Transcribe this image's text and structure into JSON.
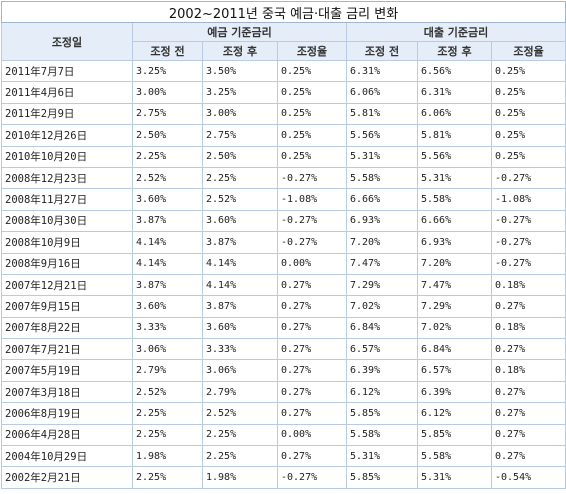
{
  "table": {
    "title": "2002~2011년 중국 예금·대출 금리 변화",
    "date_header": "조정일",
    "groups": [
      "예금 기준금리",
      "대출 기준금리"
    ],
    "sub_headers": [
      "조정 전",
      "조정 후",
      "조정율",
      "조정 전",
      "조정 후",
      "조정율"
    ],
    "rows": [
      [
        "2011年7月7日",
        "3.25%",
        "3.50%",
        "0.25%",
        "6.31%",
        "6.56%",
        "0.25%"
      ],
      [
        "2011年4月6日",
        "3.00%",
        "3.25%",
        "0.25%",
        "6.06%",
        "6.31%",
        "0.25%"
      ],
      [
        "2011年2月9日",
        "2.75%",
        "3.00%",
        "0.25%",
        "5.81%",
        "6.06%",
        "0.25%"
      ],
      [
        "2010年12月26日",
        "2.50%",
        "2.75%",
        "0.25%",
        "5.56%",
        "5.81%",
        "0.25%"
      ],
      [
        "2010年10月20日",
        "2.25%",
        "2.50%",
        "0.25%",
        "5.31%",
        "5.56%",
        "0.25%"
      ],
      [
        "2008年12月23日",
        "2.52%",
        "2.25%",
        "-0.27%",
        "5.58%",
        "5.31%",
        "-0.27%"
      ],
      [
        "2008年11月27日",
        "3.60%",
        "2.52%",
        "-1.08%",
        "6.66%",
        "5.58%",
        "-1.08%"
      ],
      [
        "2008年10月30日",
        "3.87%",
        "3.60%",
        "-0.27%",
        "6.93%",
        "6.66%",
        "-0.27%"
      ],
      [
        "2008年10月9日",
        "4.14%",
        "3.87%",
        "-0.27%",
        "7.20%",
        "6.93%",
        "-0.27%"
      ],
      [
        "2008年9月16日",
        "4.14%",
        "4.14%",
        "0.00%",
        "7.47%",
        "7.20%",
        "-0.27%"
      ],
      [
        "2007年12月21日",
        "3.87%",
        "4.14%",
        "0.27%",
        "7.29%",
        "7.47%",
        "0.18%"
      ],
      [
        "2007年9月15日",
        "3.60%",
        "3.87%",
        "0.27%",
        "7.02%",
        "7.29%",
        "0.27%"
      ],
      [
        "2007年8月22日",
        "3.33%",
        "3.60%",
        "0.27%",
        "6.84%",
        "7.02%",
        "0.18%"
      ],
      [
        "2007年7月21日",
        "3.06%",
        "3.33%",
        "0.27%",
        "6.57%",
        "6.84%",
        "0.27%"
      ],
      [
        "2007年5月19日",
        "2.79%",
        "3.06%",
        "0.27%",
        "6.39%",
        "6.57%",
        "0.18%"
      ],
      [
        "2007年3月18日",
        "2.52%",
        "2.79%",
        "0.27%",
        "6.12%",
        "6.39%",
        "0.27%"
      ],
      [
        "2006年8月19日",
        "2.25%",
        "2.52%",
        "0.27%",
        "5.85%",
        "6.12%",
        "0.27%"
      ],
      [
        "2006年4月28日",
        "2.25%",
        "2.25%",
        "0.00%",
        "5.58%",
        "5.85%",
        "0.27%"
      ],
      [
        "2004年10月29日",
        "1.98%",
        "2.25%",
        "0.27%",
        "5.31%",
        "5.58%",
        "0.27%"
      ],
      [
        "2002年2月21日",
        "2.25%",
        "1.98%",
        "-0.27%",
        "5.85%",
        "5.31%",
        "-0.54%"
      ]
    ]
  }
}
